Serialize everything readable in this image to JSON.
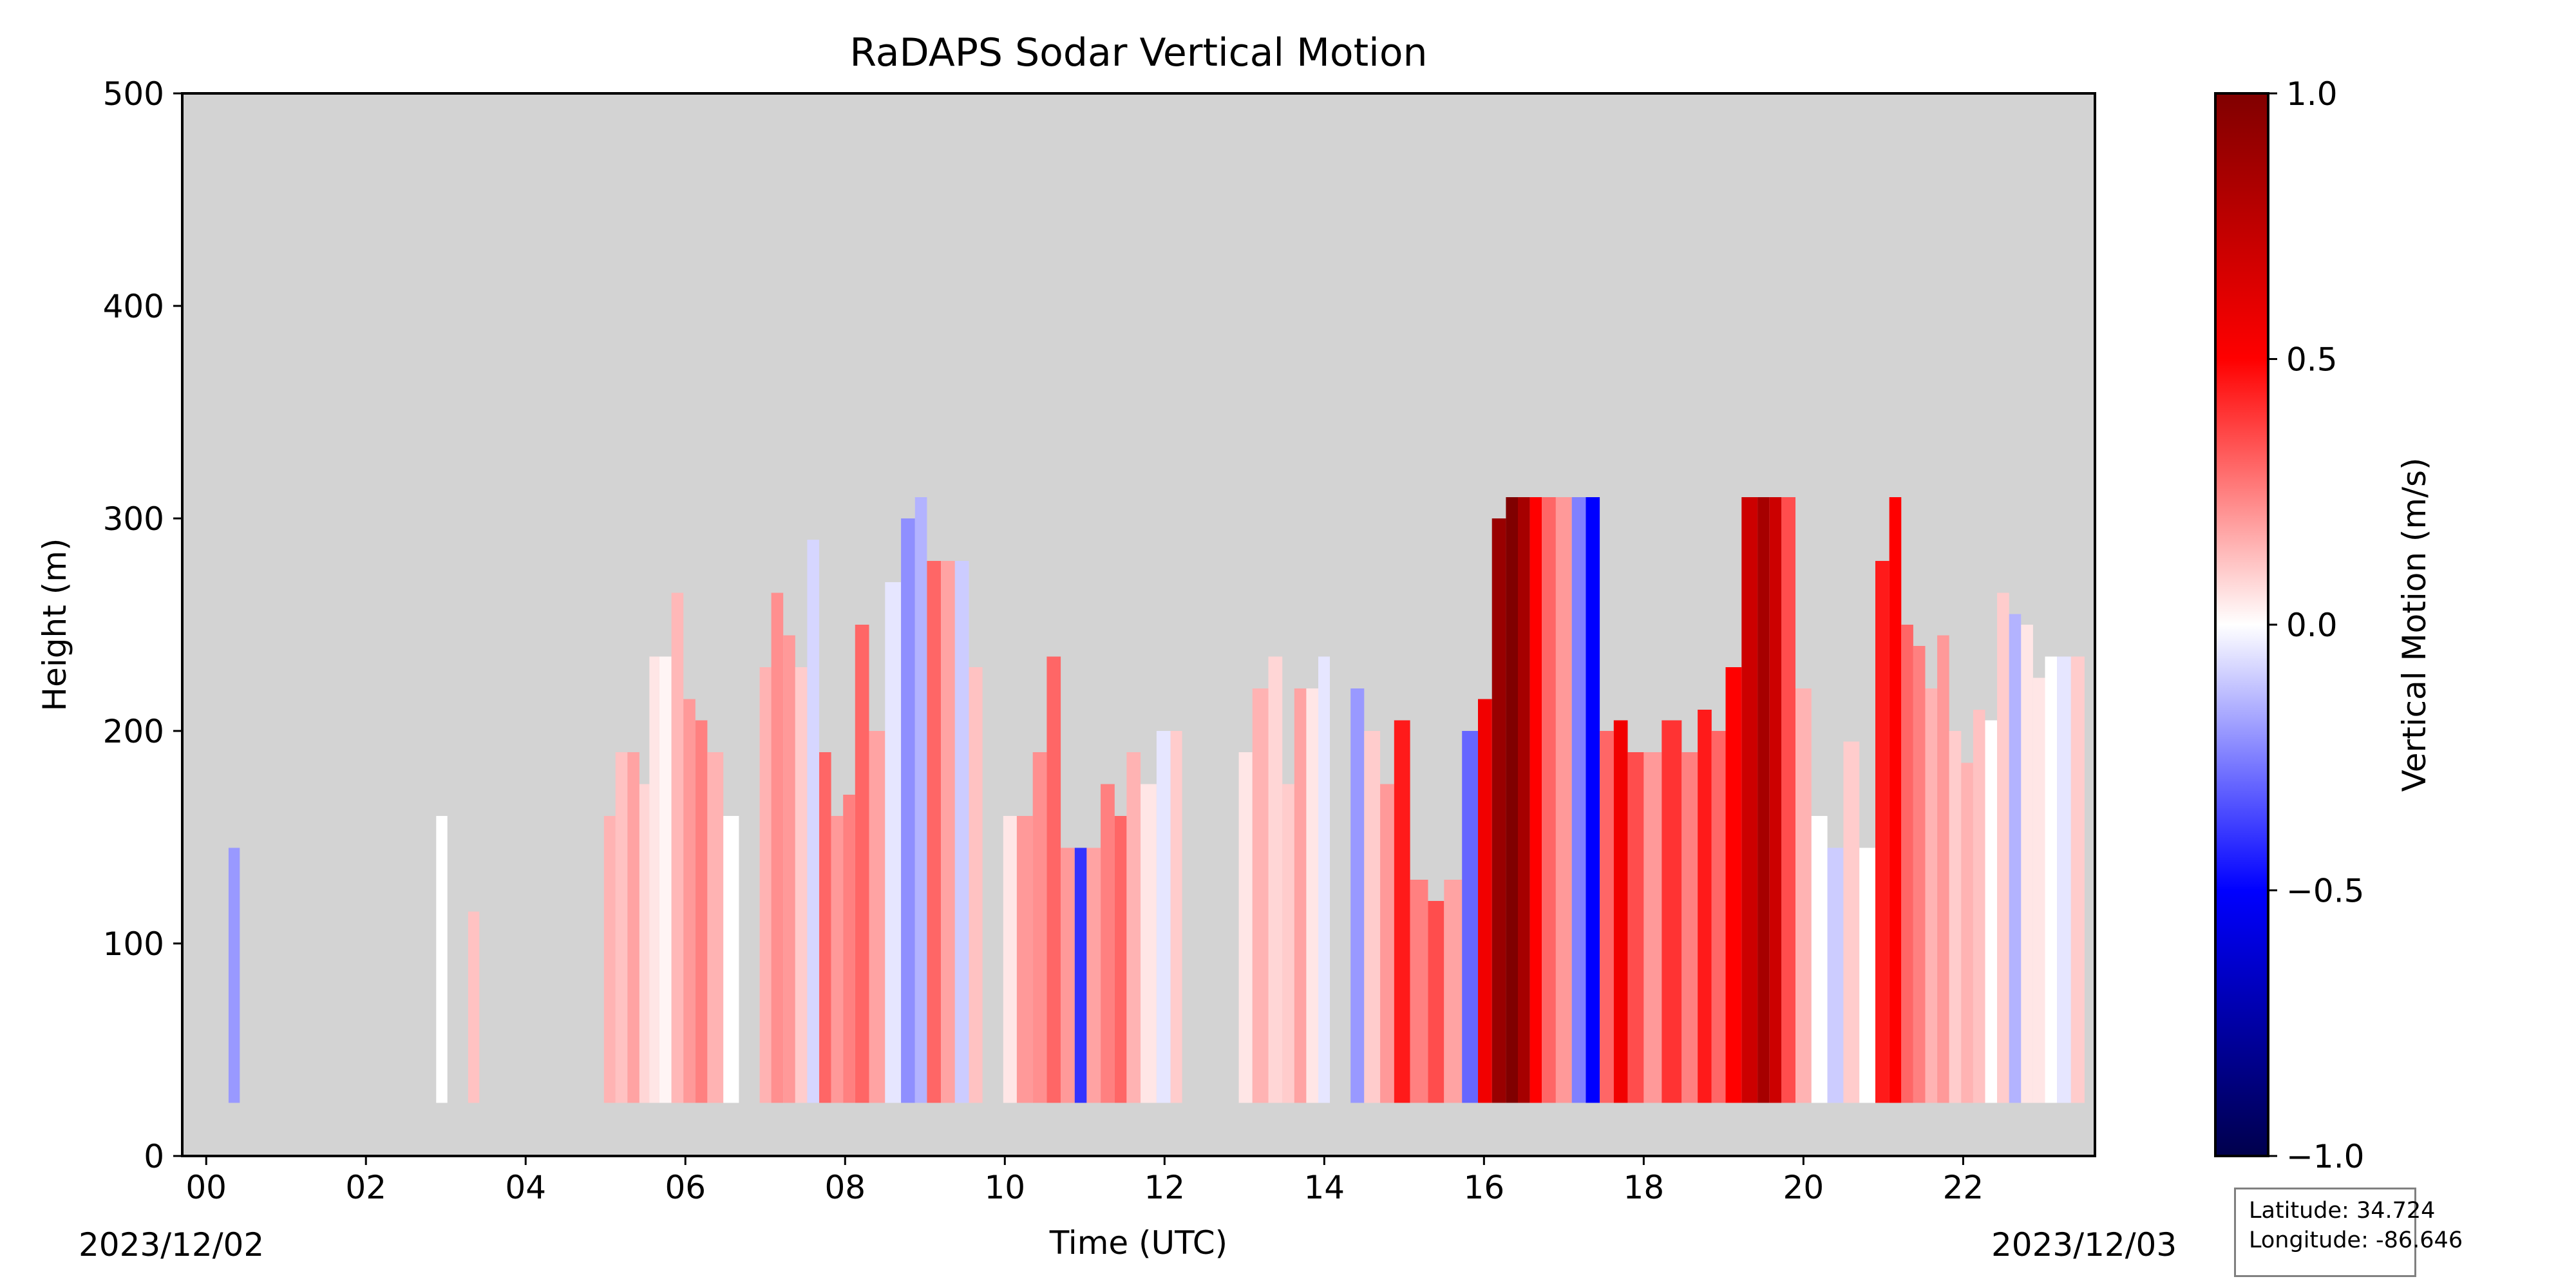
{
  "chart_data": {
    "type": "heatmap",
    "title": "RaDAPS Sodar Vertical Motion",
    "xlabel": "Time (UTC)",
    "ylabel": "Height (m)",
    "xlim": [
      -0.3,
      23.65
    ],
    "ylim": [
      0,
      500
    ],
    "x_ticks": [
      "00",
      "02",
      "04",
      "06",
      "08",
      "10",
      "12",
      "14",
      "16",
      "18",
      "20",
      "22"
    ],
    "x_tick_values": [
      0,
      2,
      4,
      6,
      8,
      10,
      12,
      14,
      16,
      18,
      20,
      22
    ],
    "y_ticks": [
      "0",
      "100",
      "200",
      "300",
      "400",
      "500"
    ],
    "y_tick_values": [
      0,
      100,
      200,
      300,
      400,
      500
    ],
    "start_date": "2023/12/02",
    "end_date": "2023/12/03",
    "background_color": "#d3d3d3",
    "colorbar": {
      "label": "Vertical Motion (m/s)",
      "range": [
        -1.0,
        1.0
      ],
      "ticks": [
        "−1.0",
        "−0.5",
        "0.0",
        "0.5",
        "1.0"
      ],
      "tick_values": [
        -1.0,
        -0.5,
        0.0,
        0.5,
        1.0
      ],
      "colormap": "seismic",
      "colors": [
        "#00004c",
        "#0000ff",
        "#ffffff",
        "#ff0000",
        "#800000"
      ]
    },
    "columns": [
      {
        "t": 0.35,
        "top": 145,
        "w": -0.2
      },
      {
        "t": 2.95,
        "top": 160,
        "w": 0.0
      },
      {
        "t": 3.35,
        "top": 115,
        "w": 0.12
      },
      {
        "t": 5.05,
        "top": 160,
        "w": 0.15
      },
      {
        "t": 5.2,
        "top": 190,
        "w": 0.12
      },
      {
        "t": 5.35,
        "top": 190,
        "w": 0.18
      },
      {
        "t": 5.5,
        "top": 175,
        "w": 0.08
      },
      {
        "t": 5.6,
        "top": 235,
        "w": 0.05
      },
      {
        "t": 5.75,
        "top": 235,
        "w": 0.02
      },
      {
        "t": 5.9,
        "top": 265,
        "w": 0.14
      },
      {
        "t": 6.05,
        "top": 215,
        "w": 0.2
      },
      {
        "t": 6.2,
        "top": 205,
        "w": 0.25
      },
      {
        "t": 6.35,
        "top": 190,
        "w": 0.15
      },
      {
        "t": 6.6,
        "top": 160,
        "w": 0.0
      },
      {
        "t": 7.0,
        "top": 230,
        "w": 0.15
      },
      {
        "t": 7.15,
        "top": 265,
        "w": 0.22
      },
      {
        "t": 7.3,
        "top": 245,
        "w": 0.2
      },
      {
        "t": 7.45,
        "top": 230,
        "w": 0.1
      },
      {
        "t": 7.6,
        "top": 290,
        "w": -0.08
      },
      {
        "t": 7.75,
        "top": 190,
        "w": 0.3
      },
      {
        "t": 7.9,
        "top": 160,
        "w": 0.2
      },
      {
        "t": 8.05,
        "top": 170,
        "w": 0.25
      },
      {
        "t": 8.2,
        "top": 250,
        "w": 0.3
      },
      {
        "t": 8.4,
        "top": 200,
        "w": 0.18
      },
      {
        "t": 8.6,
        "top": 270,
        "w": -0.05
      },
      {
        "t": 8.8,
        "top": 300,
        "w": -0.22
      },
      {
        "t": 8.95,
        "top": 310,
        "w": -0.15
      },
      {
        "t": 9.1,
        "top": 280,
        "w": 0.3
      },
      {
        "t": 9.3,
        "top": 280,
        "w": 0.18
      },
      {
        "t": 9.45,
        "top": 280,
        "w": -0.1
      },
      {
        "t": 9.65,
        "top": 230,
        "w": 0.12
      },
      {
        "t": 10.05,
        "top": 160,
        "w": 0.05
      },
      {
        "t": 10.25,
        "top": 160,
        "w": 0.2
      },
      {
        "t": 10.45,
        "top": 190,
        "w": 0.22
      },
      {
        "t": 10.6,
        "top": 235,
        "w": 0.3
      },
      {
        "t": 10.8,
        "top": 145,
        "w": 0.2
      },
      {
        "t": 10.95,
        "top": 145,
        "w": -0.4
      },
      {
        "t": 11.1,
        "top": 145,
        "w": 0.18
      },
      {
        "t": 11.3,
        "top": 175,
        "w": 0.25
      },
      {
        "t": 11.45,
        "top": 160,
        "w": 0.3
      },
      {
        "t": 11.6,
        "top": 190,
        "w": 0.15
      },
      {
        "t": 11.8,
        "top": 175,
        "w": 0.05
      },
      {
        "t": 12.0,
        "top": 200,
        "w": -0.05
      },
      {
        "t": 12.15,
        "top": 200,
        "w": 0.1
      },
      {
        "t": 13.0,
        "top": 190,
        "w": 0.05
      },
      {
        "t": 13.2,
        "top": 220,
        "w": 0.15
      },
      {
        "t": 13.4,
        "top": 235,
        "w": 0.08
      },
      {
        "t": 13.55,
        "top": 175,
        "w": 0.1
      },
      {
        "t": 13.7,
        "top": 220,
        "w": 0.18
      },
      {
        "t": 13.85,
        "top": 220,
        "w": 0.05
      },
      {
        "t": 14.0,
        "top": 235,
        "w": -0.05
      },
      {
        "t": 14.4,
        "top": 220,
        "w": -0.2
      },
      {
        "t": 14.6,
        "top": 200,
        "w": 0.1
      },
      {
        "t": 14.8,
        "top": 175,
        "w": 0.2
      },
      {
        "t": 14.95,
        "top": 205,
        "w": 0.45
      },
      {
        "t": 15.2,
        "top": 130,
        "w": 0.25
      },
      {
        "t": 15.4,
        "top": 120,
        "w": 0.35
      },
      {
        "t": 15.6,
        "top": 130,
        "w": 0.18
      },
      {
        "t": 15.85,
        "top": 200,
        "w": -0.3
      },
      {
        "t": 16.0,
        "top": 215,
        "w": 0.55
      },
      {
        "t": 16.2,
        "top": 300,
        "w": 0.9
      },
      {
        "t": 16.35,
        "top": 310,
        "w": 1.0
      },
      {
        "t": 16.5,
        "top": 310,
        "w": 0.85
      },
      {
        "t": 16.65,
        "top": 310,
        "w": 0.5
      },
      {
        "t": 16.8,
        "top": 310,
        "w": 0.3
      },
      {
        "t": 17.0,
        "top": 310,
        "w": 0.2
      },
      {
        "t": 17.2,
        "top": 310,
        "w": -0.25
      },
      {
        "t": 17.35,
        "top": 310,
        "w": -0.5
      },
      {
        "t": 17.55,
        "top": 200,
        "w": 0.3
      },
      {
        "t": 17.7,
        "top": 205,
        "w": 0.55
      },
      {
        "t": 17.9,
        "top": 190,
        "w": 0.35
      },
      {
        "t": 18.1,
        "top": 190,
        "w": 0.2
      },
      {
        "t": 18.35,
        "top": 205,
        "w": 0.4
      },
      {
        "t": 18.6,
        "top": 190,
        "w": 0.25
      },
      {
        "t": 18.75,
        "top": 210,
        "w": 0.45
      },
      {
        "t": 18.95,
        "top": 200,
        "w": 0.3
      },
      {
        "t": 19.1,
        "top": 230,
        "w": 0.5
      },
      {
        "t": 19.35,
        "top": 310,
        "w": 0.7
      },
      {
        "t": 19.5,
        "top": 310,
        "w": 0.85
      },
      {
        "t": 19.65,
        "top": 310,
        "w": 0.7
      },
      {
        "t": 19.8,
        "top": 310,
        "w": 0.35
      },
      {
        "t": 20.0,
        "top": 220,
        "w": 0.15
      },
      {
        "t": 20.2,
        "top": 160,
        "w": 0.0
      },
      {
        "t": 20.4,
        "top": 145,
        "w": -0.1
      },
      {
        "t": 20.6,
        "top": 195,
        "w": 0.1
      },
      {
        "t": 20.8,
        "top": 145,
        "w": 0.0
      },
      {
        "t": 21.0,
        "top": 280,
        "w": 0.45
      },
      {
        "t": 21.15,
        "top": 310,
        "w": 0.5
      },
      {
        "t": 21.3,
        "top": 250,
        "w": 0.3
      },
      {
        "t": 21.45,
        "top": 240,
        "w": 0.25
      },
      {
        "t": 21.6,
        "top": 220,
        "w": 0.15
      },
      {
        "t": 21.75,
        "top": 245,
        "w": 0.2
      },
      {
        "t": 21.9,
        "top": 200,
        "w": 0.1
      },
      {
        "t": 22.05,
        "top": 185,
        "w": 0.15
      },
      {
        "t": 22.2,
        "top": 210,
        "w": 0.12
      },
      {
        "t": 22.35,
        "top": 205,
        "w": 0.0
      },
      {
        "t": 22.5,
        "top": 265,
        "w": 0.1
      },
      {
        "t": 22.65,
        "top": 255,
        "w": -0.15
      },
      {
        "t": 22.8,
        "top": 250,
        "w": 0.05
      },
      {
        "t": 22.95,
        "top": 225,
        "w": 0.05
      },
      {
        "t": 23.1,
        "top": 235,
        "w": 0.0
      },
      {
        "t": 23.25,
        "top": 235,
        "w": -0.05
      },
      {
        "t": 23.45,
        "top": 235,
        "w": 0.1
      }
    ],
    "min_height": 25
  },
  "info_box": {
    "latitude_text": "Latitude: 34.724",
    "longitude_text": "Longitude: -86.646"
  }
}
